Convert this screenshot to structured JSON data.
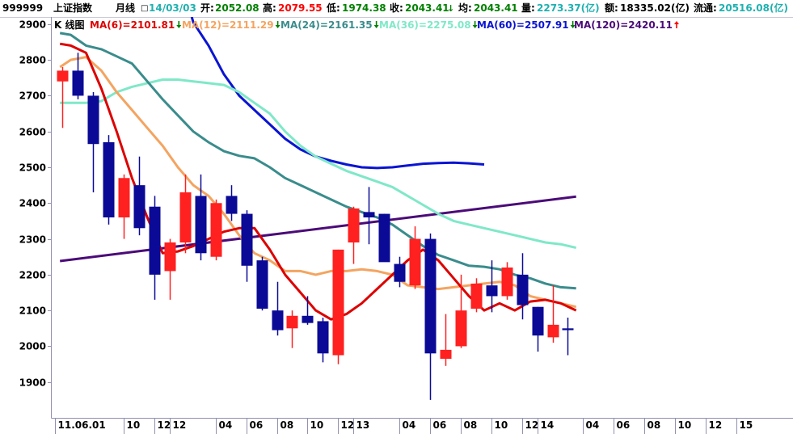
{
  "quote_bar": {
    "code": "999999",
    "name": "上证指数",
    "period": "月线",
    "date": "14/03/03",
    "open_label": "开:",
    "open": "2052.08",
    "high_label": "高:",
    "high": "2079.55",
    "low_label": "低:",
    "low": "1974.38",
    "close_label": "收:",
    "close": "2043.41",
    "avg_label": "均:",
    "avg": "2043.41",
    "volume_label": "量:",
    "volume": "2273.37(亿)",
    "amount_label": "额:",
    "amount": "18335.02(亿)",
    "float_label": "流通:",
    "float": "20516.08(亿)"
  },
  "colors": {
    "up": "#ff2020",
    "down": "#0a0a96",
    "axis": "#9090b0",
    "ma6": "#dd0000",
    "ma12": "#f4a460",
    "ma24": "#3a8c8c",
    "ma36": "#7fe8c8",
    "ma60": "#0a14d2",
    "ma120": "#4b0a78"
  },
  "legend": {
    "kline": "K 线图",
    "items": [
      {
        "key": "ma6",
        "text": "MA(6)=2101.81",
        "arrow": "down"
      },
      {
        "key": "ma12",
        "text": "MA(12)=2111.29",
        "arrow": "down"
      },
      {
        "key": "ma24",
        "text": "MA(24)=2161.35",
        "arrow": "down"
      },
      {
        "key": "ma36",
        "text": "MA(36)=2275.08",
        "arrow": "down"
      },
      {
        "key": "ma60",
        "text": "MA(60)=2507.91",
        "arrow": "down"
      },
      {
        "key": "ma120",
        "text": "MA(120)=2420.11",
        "arrow": "up"
      }
    ]
  },
  "chart_data": {
    "type": "candlestick",
    "title": "上证指数 月线",
    "ylim": [
      1800,
      2920
    ],
    "yticks": [
      1900,
      2000,
      2100,
      2200,
      2300,
      2400,
      2500,
      2600,
      2700,
      2800,
      2900
    ],
    "xlim": [
      -0.7,
      47.7
    ],
    "xticks": [
      {
        "idx": -0.5,
        "label": "11.06.01"
      },
      {
        "idx": 4,
        "label": "10"
      },
      {
        "idx": 6,
        "label": "12"
      },
      {
        "idx": 7,
        "label": "12"
      },
      {
        "idx": 10,
        "label": "04"
      },
      {
        "idx": 12,
        "label": "06"
      },
      {
        "idx": 14,
        "label": "08"
      },
      {
        "idx": 16,
        "label": "10"
      },
      {
        "idx": 18,
        "label": "12"
      },
      {
        "idx": 19,
        "label": "13"
      },
      {
        "idx": 22,
        "label": "04"
      },
      {
        "idx": 24,
        "label": "06"
      },
      {
        "idx": 26,
        "label": "08"
      },
      {
        "idx": 28,
        "label": "10"
      },
      {
        "idx": 30,
        "label": "12"
      },
      {
        "idx": 31,
        "label": "14"
      },
      {
        "idx": 34,
        "label": "04"
      },
      {
        "idx": 36,
        "label": "06"
      },
      {
        "idx": 38,
        "label": "08"
      },
      {
        "idx": 40,
        "label": "10"
      },
      {
        "idx": 42,
        "label": "12"
      },
      {
        "idx": 44,
        "label": "15"
      }
    ],
    "candles": [
      {
        "o": 2740,
        "h": 2780,
        "l": 2610,
        "c": 2770
      },
      {
        "o": 2770,
        "h": 2820,
        "l": 2690,
        "c": 2700
      },
      {
        "o": 2700,
        "h": 2710,
        "l": 2430,
        "c": 2565
      },
      {
        "o": 2570,
        "h": 2590,
        "l": 2340,
        "c": 2360
      },
      {
        "o": 2360,
        "h": 2480,
        "l": 2300,
        "c": 2470
      },
      {
        "o": 2450,
        "h": 2530,
        "l": 2310,
        "c": 2330
      },
      {
        "o": 2390,
        "h": 2420,
        "l": 2130,
        "c": 2200
      },
      {
        "o": 2210,
        "h": 2300,
        "l": 2130,
        "c": 2290
      },
      {
        "o": 2290,
        "h": 2480,
        "l": 2260,
        "c": 2430
      },
      {
        "o": 2420,
        "h": 2480,
        "l": 2240,
        "c": 2260
      },
      {
        "o": 2250,
        "h": 2410,
        "l": 2240,
        "c": 2400
      },
      {
        "o": 2420,
        "h": 2450,
        "l": 2350,
        "c": 2370
      },
      {
        "o": 2370,
        "h": 2380,
        "l": 2180,
        "c": 2225
      },
      {
        "o": 2240,
        "h": 2250,
        "l": 2100,
        "c": 2105
      },
      {
        "o": 2100,
        "h": 2180,
        "l": 2030,
        "c": 2045
      },
      {
        "o": 2050,
        "h": 2100,
        "l": 1995,
        "c": 2085
      },
      {
        "o": 2085,
        "h": 2140,
        "l": 2060,
        "c": 2065
      },
      {
        "o": 2070,
        "h": 2080,
        "l": 1955,
        "c": 1980
      },
      {
        "o": 1975,
        "h": 2270,
        "l": 1950,
        "c": 2270
      },
      {
        "o": 2290,
        "h": 2390,
        "l": 2230,
        "c": 2385
      },
      {
        "o": 2375,
        "h": 2445,
        "l": 2285,
        "c": 2360
      },
      {
        "o": 2370,
        "h": 2370,
        "l": 2240,
        "c": 2235
      },
      {
        "o": 2230,
        "h": 2250,
        "l": 2165,
        "c": 2180
      },
      {
        "o": 2170,
        "h": 2335,
        "l": 2160,
        "c": 2300
      },
      {
        "o": 2300,
        "h": 2315,
        "l": 1850,
        "c": 1980
      },
      {
        "o": 1965,
        "h": 2090,
        "l": 1945,
        "c": 1990
      },
      {
        "o": 2000,
        "h": 2200,
        "l": 1995,
        "c": 2100
      },
      {
        "o": 2105,
        "h": 2190,
        "l": 2095,
        "c": 2175
      },
      {
        "o": 2170,
        "h": 2240,
        "l": 2095,
        "c": 2140
      },
      {
        "o": 2140,
        "h": 2235,
        "l": 2130,
        "c": 2220
      },
      {
        "o": 2200,
        "h": 2260,
        "l": 2075,
        "c": 2115
      },
      {
        "o": 2110,
        "h": 2110,
        "l": 1985,
        "c": 2030
      },
      {
        "o": 2025,
        "h": 2170,
        "l": 2010,
        "c": 2060
      },
      {
        "o": 2050,
        "h": 2080,
        "l": 1975,
        "c": 2045
      }
    ],
    "ma": {
      "ma6": [
        [
          -0.7,
          2845
        ],
        [
          0,
          2840
        ],
        [
          1,
          2820
        ],
        [
          2,
          2720
        ],
        [
          3,
          2600
        ],
        [
          4,
          2470
        ],
        [
          5,
          2360
        ],
        [
          6,
          2260
        ],
        [
          7,
          2265
        ],
        [
          8,
          2280
        ],
        [
          9,
          2300
        ],
        [
          10,
          2320
        ],
        [
          11,
          2330
        ],
        [
          12,
          2330
        ],
        [
          13,
          2270
        ],
        [
          14,
          2200
        ],
        [
          15,
          2150
        ],
        [
          16,
          2100
        ],
        [
          17,
          2075
        ],
        [
          18,
          2090
        ],
        [
          19,
          2120
        ],
        [
          20,
          2160
        ],
        [
          21,
          2200
        ],
        [
          22,
          2240
        ],
        [
          23,
          2270
        ],
        [
          24,
          2240
        ],
        [
          25,
          2190
        ],
        [
          26,
          2140
        ],
        [
          27,
          2100
        ],
        [
          28,
          2120
        ],
        [
          29,
          2100
        ],
        [
          30,
          2125
        ],
        [
          31,
          2130
        ],
        [
          32,
          2120
        ],
        [
          33,
          2100
        ]
      ],
      "ma12": [
        [
          -0.7,
          2780
        ],
        [
          0,
          2800
        ],
        [
          1,
          2808
        ],
        [
          2,
          2770
        ],
        [
          3,
          2710
        ],
        [
          4,
          2660
        ],
        [
          5,
          2610
        ],
        [
          6,
          2560
        ],
        [
          7,
          2500
        ],
        [
          8,
          2450
        ],
        [
          9,
          2420
        ],
        [
          10,
          2370
        ],
        [
          11,
          2310
        ],
        [
          12,
          2260
        ],
        [
          13,
          2240
        ],
        [
          14,
          2210
        ],
        [
          15,
          2210
        ],
        [
          16,
          2200
        ],
        [
          17,
          2210
        ],
        [
          18,
          2210
        ],
        [
          19,
          2215
        ],
        [
          20,
          2210
        ],
        [
          21,
          2200
        ],
        [
          22,
          2170
        ],
        [
          23,
          2165
        ],
        [
          24,
          2160
        ],
        [
          25,
          2165
        ],
        [
          26,
          2170
        ],
        [
          27,
          2175
        ],
        [
          28,
          2180
        ],
        [
          29,
          2170
        ],
        [
          30,
          2140
        ],
        [
          31,
          2130
        ],
        [
          32,
          2120
        ],
        [
          33,
          2110
        ]
      ],
      "ma24": [
        [
          -0.7,
          2875
        ],
        [
          0,
          2870
        ],
        [
          1,
          2840
        ],
        [
          2,
          2830
        ],
        [
          3,
          2810
        ],
        [
          4,
          2790
        ],
        [
          5,
          2740
        ],
        [
          6,
          2690
        ],
        [
          7,
          2645
        ],
        [
          8,
          2600
        ],
        [
          9,
          2570
        ],
        [
          10,
          2545
        ],
        [
          11,
          2532
        ],
        [
          12,
          2525
        ],
        [
          13,
          2500
        ],
        [
          14,
          2470
        ],
        [
          15,
          2450
        ],
        [
          16,
          2430
        ],
        [
          17,
          2410
        ],
        [
          18,
          2390
        ],
        [
          19,
          2375
        ],
        [
          20,
          2360
        ],
        [
          21,
          2340
        ],
        [
          22,
          2310
        ],
        [
          23,
          2280
        ],
        [
          24,
          2255
        ],
        [
          25,
          2240
        ],
        [
          26,
          2225
        ],
        [
          27,
          2222
        ],
        [
          28,
          2215
        ],
        [
          29,
          2200
        ],
        [
          30,
          2190
        ],
        [
          31,
          2175
        ],
        [
          32,
          2165
        ],
        [
          33,
          2162
        ]
      ],
      "ma36": [
        [
          -0.7,
          2680
        ],
        [
          0,
          2680
        ],
        [
          1,
          2680
        ],
        [
          2,
          2685
        ],
        [
          3,
          2710
        ],
        [
          4,
          2725
        ],
        [
          5,
          2735
        ],
        [
          6,
          2745
        ],
        [
          7,
          2745
        ],
        [
          8,
          2740
        ],
        [
          9,
          2735
        ],
        [
          10,
          2730
        ],
        [
          11,
          2710
        ],
        [
          12,
          2680
        ],
        [
          13,
          2650
        ],
        [
          14,
          2600
        ],
        [
          15,
          2560
        ],
        [
          16,
          2530
        ],
        [
          17,
          2510
        ],
        [
          18,
          2490
        ],
        [
          19,
          2475
        ],
        [
          20,
          2460
        ],
        [
          21,
          2445
        ],
        [
          22,
          2420
        ],
        [
          23,
          2395
        ],
        [
          24,
          2370
        ],
        [
          25,
          2350
        ],
        [
          26,
          2340
        ],
        [
          27,
          2330
        ],
        [
          28,
          2320
        ],
        [
          29,
          2310
        ],
        [
          30,
          2300
        ],
        [
          31,
          2290
        ],
        [
          32,
          2285
        ],
        [
          33,
          2275
        ]
      ],
      "ma60": [
        [
          7.9,
          2920
        ],
        [
          8,
          2905
        ],
        [
          9,
          2840
        ],
        [
          10,
          2760
        ],
        [
          11,
          2700
        ],
        [
          12,
          2660
        ],
        [
          13,
          2620
        ],
        [
          14,
          2580
        ],
        [
          15,
          2550
        ],
        [
          16,
          2530
        ],
        [
          17,
          2518
        ],
        [
          18,
          2508
        ],
        [
          19,
          2500
        ],
        [
          20,
          2498
        ],
        [
          21,
          2500
        ],
        [
          22,
          2505
        ],
        [
          23,
          2510
        ],
        [
          24,
          2512
        ],
        [
          25,
          2513
        ],
        [
          26,
          2511
        ],
        [
          27,
          2508
        ]
      ],
      "ma120": [
        [
          -0.7,
          2238
        ],
        [
          33,
          2418
        ]
      ]
    },
    "ma_slot": 0.54
  }
}
